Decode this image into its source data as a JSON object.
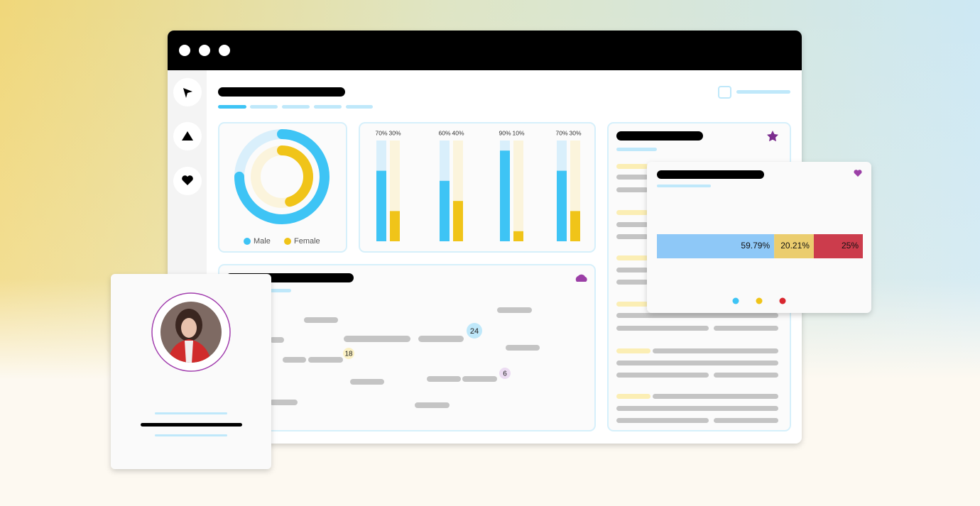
{
  "donut": {
    "range": [
      0,
      100
    ],
    "series": [
      {
        "name": "Male",
        "color": "#3ec4f5",
        "value": 75
      },
      {
        "name": "Female",
        "color": "#f0c419",
        "value": 45
      }
    ]
  },
  "bars": {
    "ylim": [
      0,
      100
    ],
    "colors": [
      "#3ec4f5",
      "#f0c419"
    ],
    "groups": [
      {
        "values": [
          70,
          30
        ],
        "value_labels": [
          "70%",
          "30%"
        ]
      },
      {
        "values": [
          60,
          40
        ],
        "value_labels": [
          "60%",
          "40%"
        ]
      },
      {
        "values": [
          90,
          10
        ],
        "value_labels": [
          "90%",
          "10%"
        ]
      },
      {
        "values": [
          70,
          30
        ],
        "value_labels": [
          "70%",
          "30%"
        ]
      }
    ]
  },
  "stacked": {
    "segments": [
      {
        "value": 59.79,
        "label": "59.79%",
        "color": "#8ec8f7"
      },
      {
        "value": 20.21,
        "label": "20.21%",
        "color": "#ebcd6e"
      },
      {
        "value": 25,
        "label": "25%",
        "color": "#cc3c4c"
      }
    ]
  },
  "bubbles": [
    {
      "value": 24,
      "color": "#bfe8fa"
    },
    {
      "value": 18,
      "color": "#fbf1c4"
    },
    {
      "value": 6,
      "color": "#ecdcf2"
    }
  ]
}
